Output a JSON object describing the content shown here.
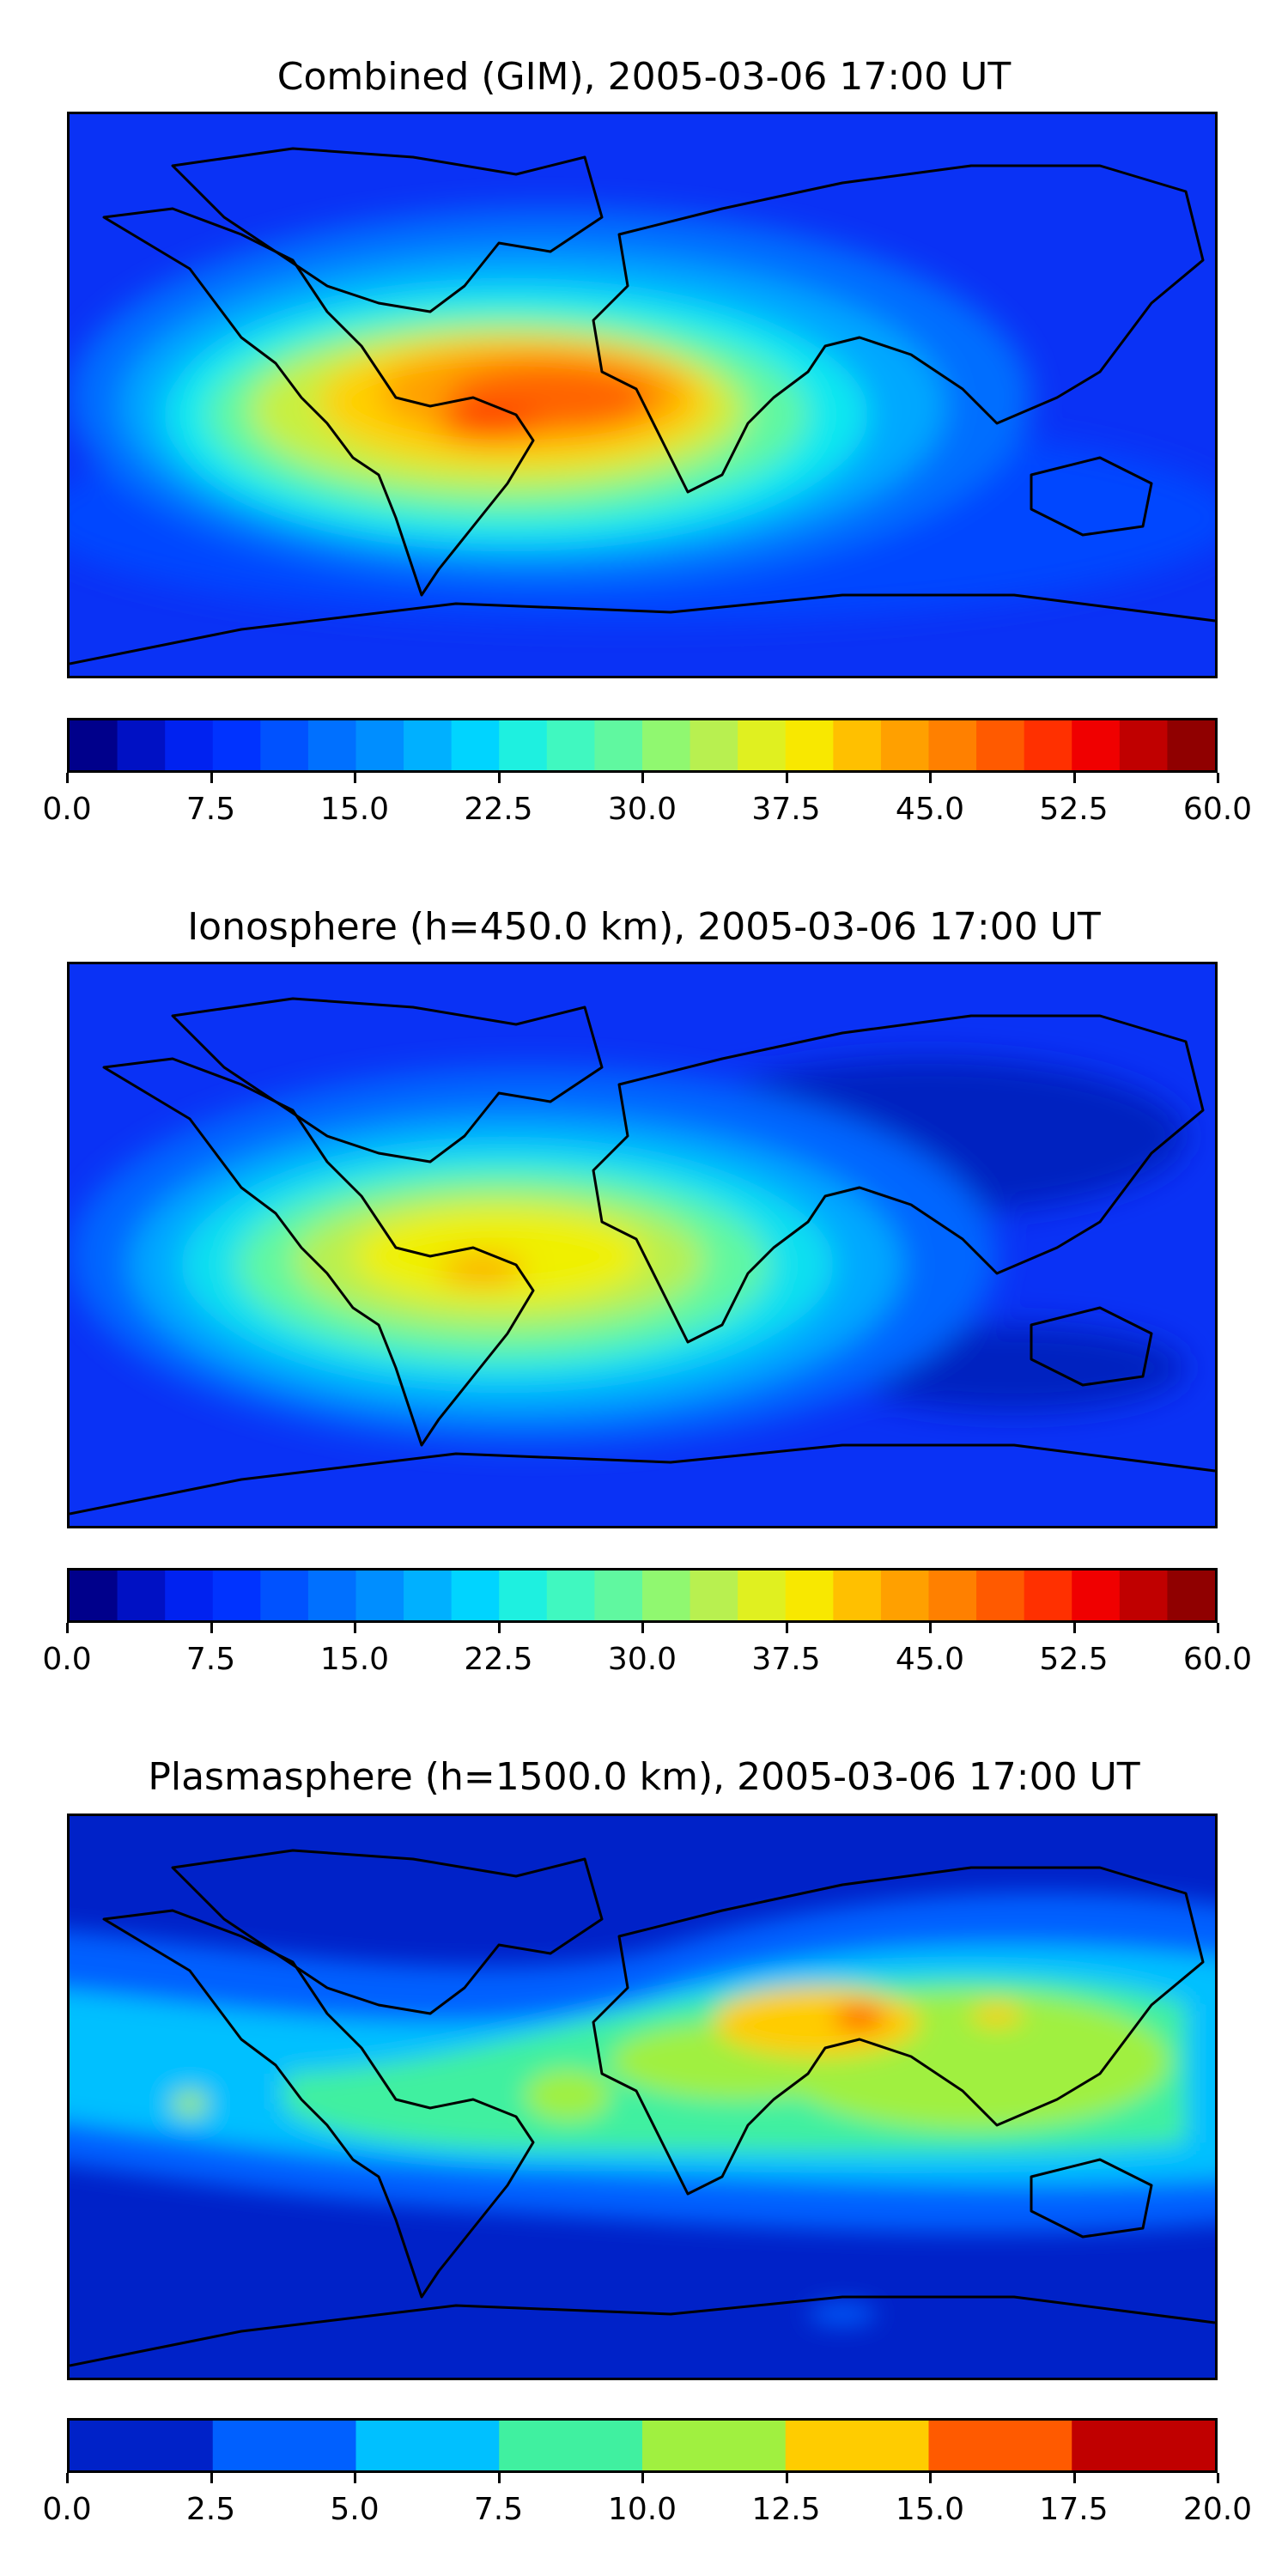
{
  "panels": [
    {
      "id": "combined",
      "title": "Combined (GIM), 2005-03-06 17:00 UT",
      "colorbar": {
        "min": 0.0,
        "max": 60.0,
        "tick_labels": [
          "0.0",
          "7.5",
          "15.0",
          "22.5",
          "30.0",
          "37.5",
          "45.0",
          "52.5",
          "60.0"
        ],
        "colors": [
          "#00008b",
          "#0011c4",
          "#0022f0",
          "#0033ff",
          "#0052ff",
          "#0070ff",
          "#008eff",
          "#00b0ff",
          "#00d4ff",
          "#1ef0e0",
          "#40f8c0",
          "#60f8a0",
          "#90f870",
          "#b8f050",
          "#e0f020",
          "#f8e800",
          "#ffc000",
          "#ffa000",
          "#ff8000",
          "#ff5a00",
          "#ff3000",
          "#f00000",
          "#c00000",
          "#900000"
        ]
      }
    },
    {
      "id": "ionosphere",
      "title": "Ionosphere  (h=450.0 km), 2005-03-06 17:00 UT",
      "colorbar": {
        "min": 0.0,
        "max": 60.0,
        "tick_labels": [
          "0.0",
          "7.5",
          "15.0",
          "22.5",
          "30.0",
          "37.5",
          "45.0",
          "52.5",
          "60.0"
        ],
        "colors": [
          "#00008b",
          "#0011c4",
          "#0022f0",
          "#0033ff",
          "#0052ff",
          "#0070ff",
          "#008eff",
          "#00b0ff",
          "#00d4ff",
          "#1ef0e0",
          "#40f8c0",
          "#60f8a0",
          "#90f870",
          "#b8f050",
          "#e0f020",
          "#f8e800",
          "#ffc000",
          "#ffa000",
          "#ff8000",
          "#ff5a00",
          "#ff3000",
          "#f00000",
          "#c00000",
          "#900000"
        ]
      }
    },
    {
      "id": "plasmasphere",
      "title": "Plasmasphere (h=1500.0 km), 2005-03-06 17:00 UT",
      "colorbar": {
        "min": 0.0,
        "max": 20.0,
        "tick_labels": [
          "0.0",
          "2.5",
          "5.0",
          "7.5",
          "10.0",
          "12.5",
          "15.0",
          "17.5",
          "20.0"
        ],
        "colors": [
          "#0022c8",
          "#0060ff",
          "#00c0ff",
          "#40f0a0",
          "#a0f040",
          "#ffcc00",
          "#ff5a00",
          "#c00000"
        ]
      }
    }
  ]
}
